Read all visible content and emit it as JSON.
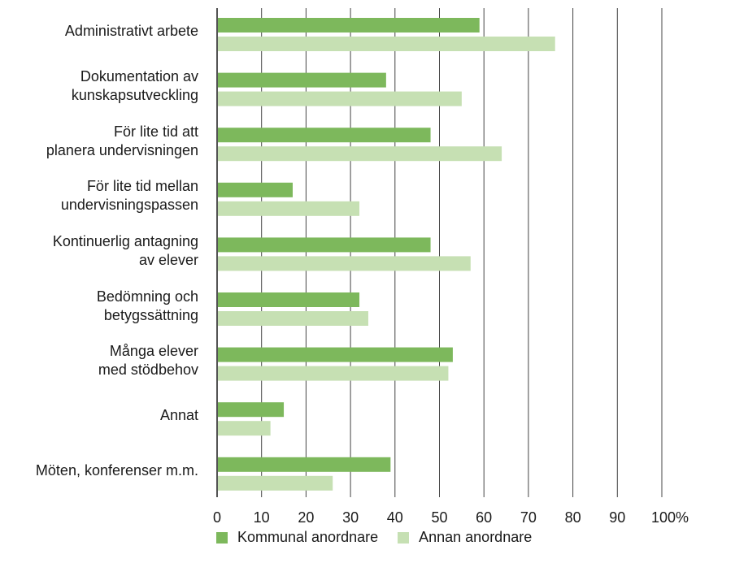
{
  "chart_data": {
    "type": "bar",
    "orientation": "horizontal",
    "categories": [
      "Administrativt arbete",
      "Dokumentation av\nkunskapsutveckling",
      "För lite tid att\nplanera undervisningen",
      "För lite tid mellan\nundervisningspassen",
      "Kontinuerlig antagning\nav elever",
      "Bedömning och\nbetygssättning",
      "Många elever\nmed stödbehov",
      "Annat",
      "Möten, konferenser m.m."
    ],
    "series": [
      {
        "name": "Kommunal anordnare",
        "color": "#7db85c",
        "values": [
          59,
          38,
          48,
          17,
          48,
          32,
          53,
          15,
          39
        ]
      },
      {
        "name": "Annan anordnare",
        "color": "#c6e0b3",
        "values": [
          76,
          55,
          64,
          32,
          57,
          34,
          52,
          12,
          26
        ]
      }
    ],
    "xlim": [
      0,
      100
    ],
    "ticks": [
      "0",
      "10",
      "20",
      "30",
      "40",
      "50",
      "60",
      "70",
      "80",
      "90",
      "100%"
    ],
    "grid": true,
    "legend_position": "bottom"
  }
}
